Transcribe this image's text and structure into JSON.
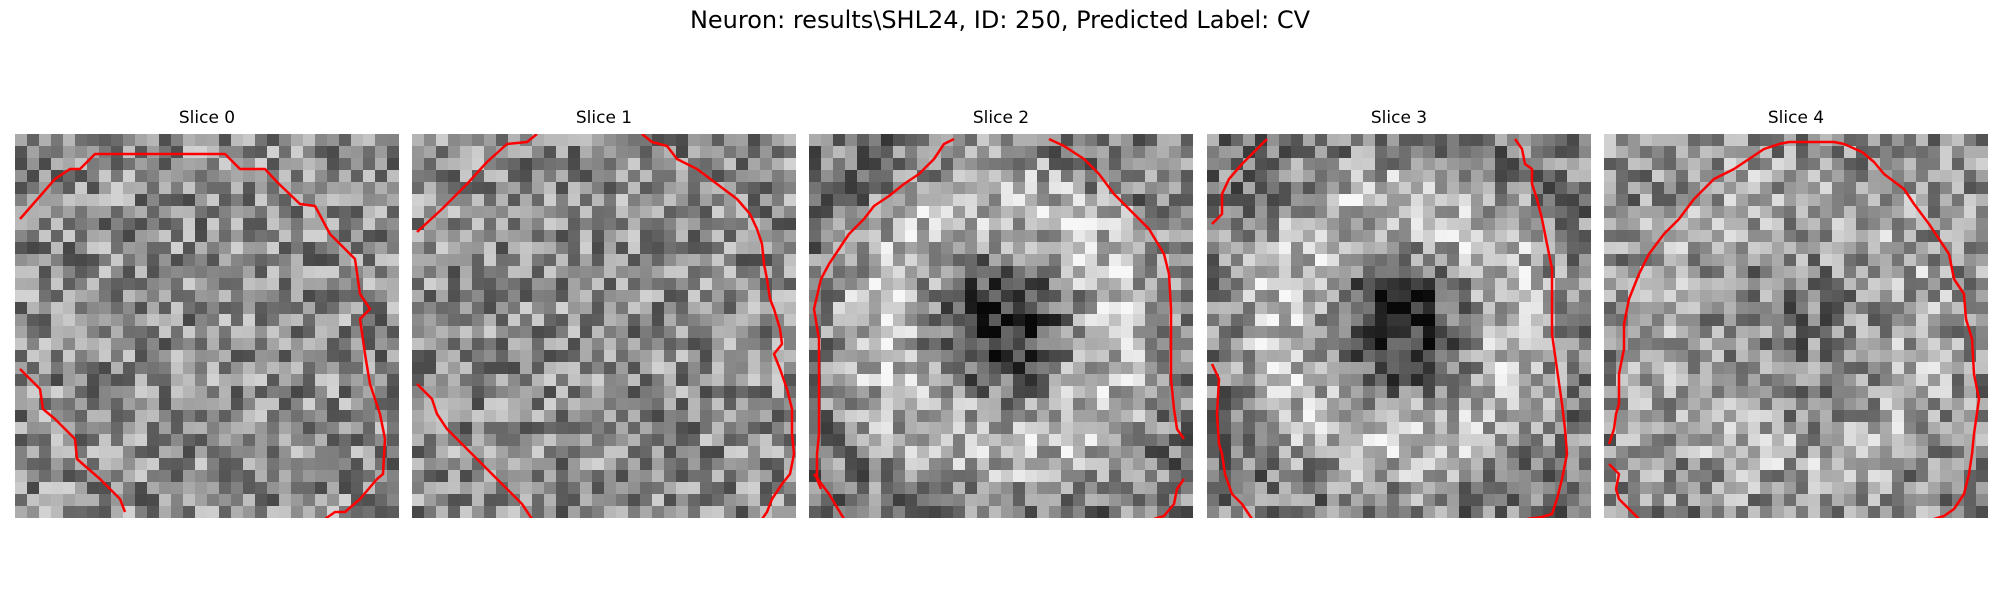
{
  "title": "Neuron: results\\SHL24, ID: 250, Predicted Label: CV",
  "contour_color": "#ff0000",
  "slices": [
    {
      "label": "Slice 0",
      "pattern": "noise"
    },
    {
      "label": "Slice 1",
      "pattern": "noise"
    },
    {
      "label": "Slice 2",
      "pattern": "bright-ring-dark-center"
    },
    {
      "label": "Slice 3",
      "pattern": "bright-ring-dark-center"
    },
    {
      "label": "Slice 4",
      "pattern": "faint-ring"
    }
  ]
}
